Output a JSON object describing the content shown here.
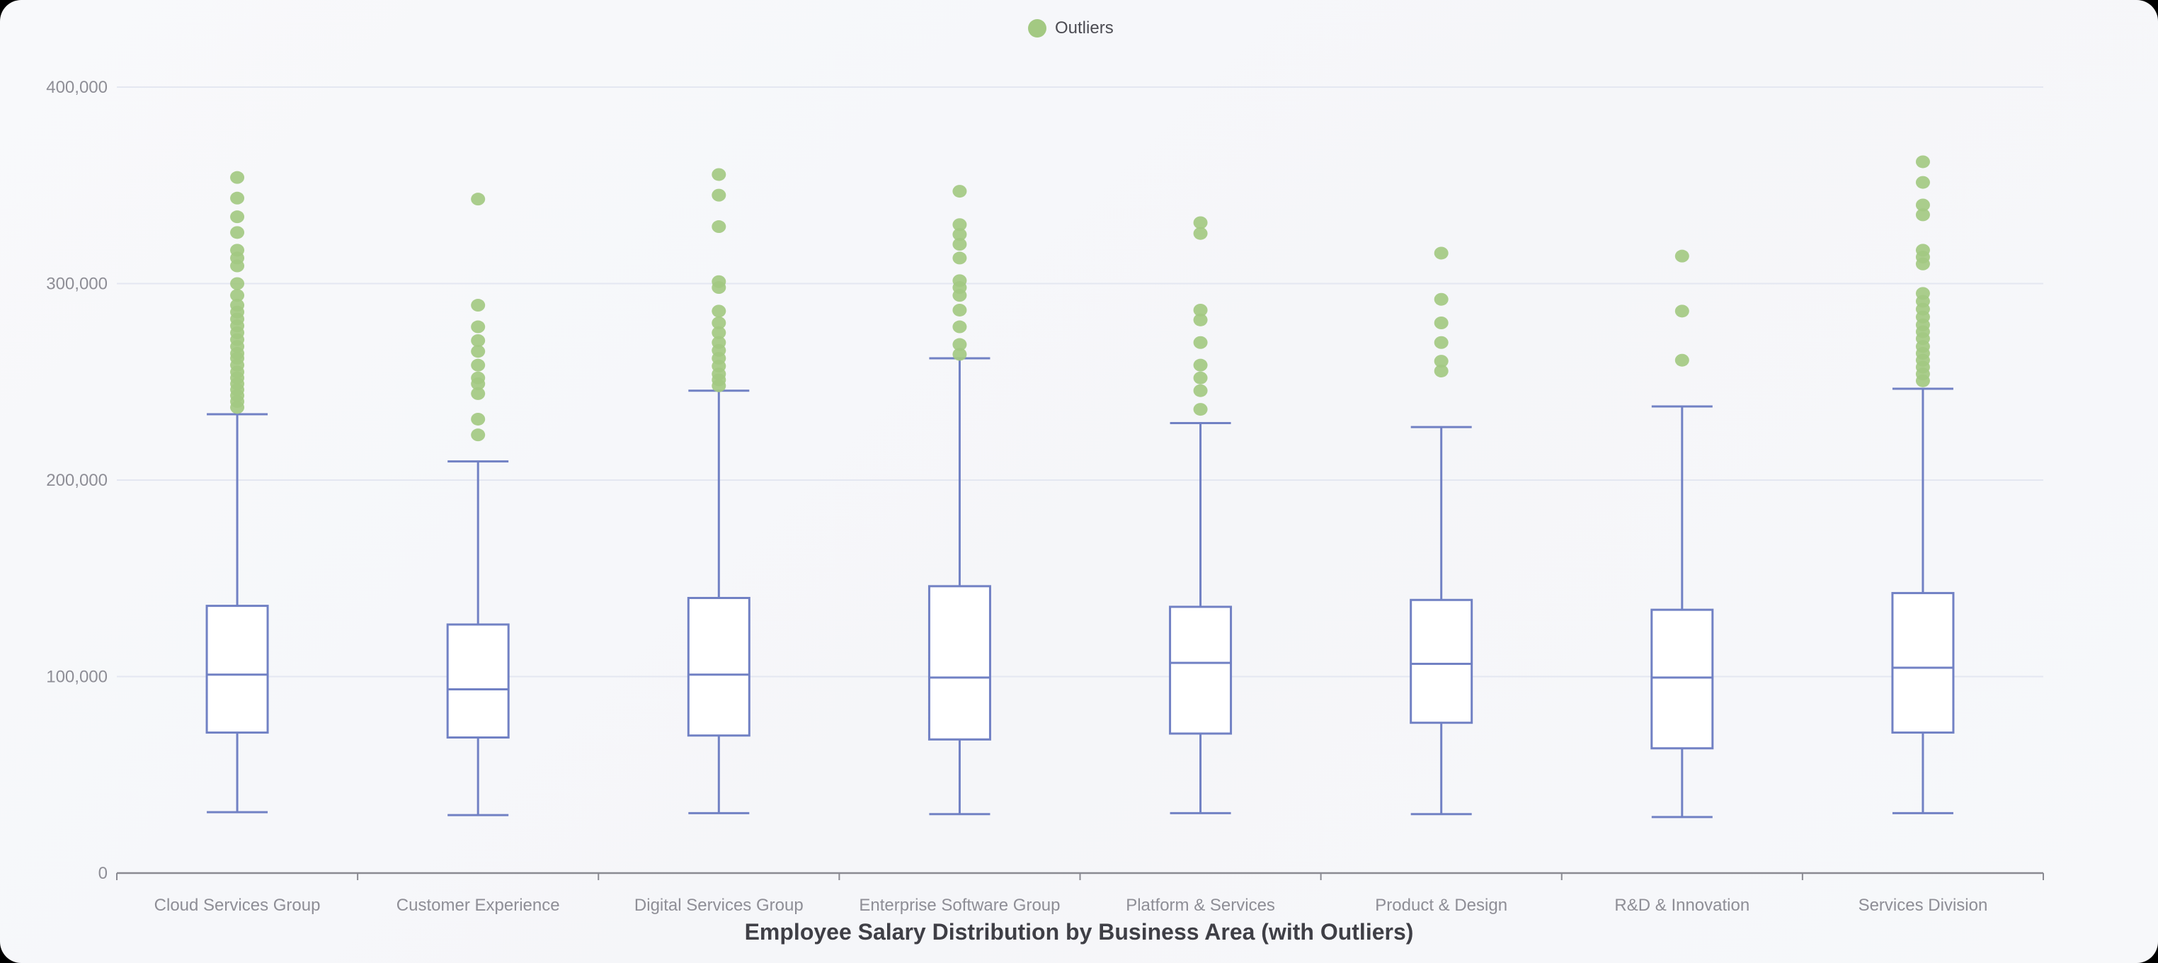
{
  "colors": {
    "page_bg": "#000000",
    "card_bg": "#f7f8fa",
    "outlier": "#a3c982",
    "box_stroke": "#7181c4",
    "box_fill": "#ffffff",
    "grid": "#e4e7f1",
    "axis": "#8a8a92",
    "tick_label": "#8e8e96",
    "legend_text": "#4b4b52",
    "title_text": "#3f3f46"
  },
  "chart_data": {
    "type": "boxplot",
    "title": "Employee Salary Distribution by Business Area (with Outliers)",
    "legend": [
      "Outliers"
    ],
    "legend_position": "top-center",
    "grid": "on",
    "xlabel": "",
    "ylabel": "",
    "ylim": [
      0,
      400000
    ],
    "yticks": [
      0,
      100000,
      200000,
      300000,
      400000
    ],
    "ytick_labels": [
      "0",
      "100,000",
      "200,000",
      "300,000",
      "400,000"
    ],
    "categories": [
      "Cloud Services Group",
      "Customer Experience",
      "Digital Services Group",
      "Enterprise Software Group",
      "Platform & Services",
      "Product & Design",
      "R&D & Innovation",
      "Services Division"
    ],
    "series": [
      {
        "name": "Cloud Services Group",
        "low": 31000,
        "q1": 71500,
        "median": 101000,
        "q3": 136000,
        "high": 233500,
        "outliers": [
          354000,
          343500,
          334000,
          326000,
          317000,
          313000,
          309000,
          300000,
          294000,
          289000,
          285500,
          282000,
          278500,
          275000,
          271500,
          268000,
          264500,
          262000,
          258500,
          255000,
          252000,
          249000,
          246000,
          243000,
          240000,
          237000
        ]
      },
      {
        "name": "Customer Experience",
        "low": 29500,
        "q1": 69000,
        "median": 93500,
        "q3": 126500,
        "high": 209500,
        "outliers": [
          343000,
          289000,
          278000,
          271000,
          265500,
          258500,
          252000,
          249000,
          244000,
          231000,
          223000
        ]
      },
      {
        "name": "Digital Services Group",
        "low": 30500,
        "q1": 70000,
        "median": 101000,
        "q3": 140000,
        "high": 245500,
        "outliers": [
          355500,
          345000,
          329000,
          301000,
          298000,
          286000,
          280000,
          275000,
          270000,
          266000,
          262000,
          258000,
          254000,
          251000,
          248000
        ]
      },
      {
        "name": "Enterprise Software Group",
        "low": 30000,
        "q1": 68000,
        "median": 99500,
        "q3": 146000,
        "high": 262000,
        "outliers": [
          347000,
          330000,
          325000,
          320000,
          313000,
          301500,
          298000,
          294000,
          286500,
          278000,
          269000,
          264000
        ]
      },
      {
        "name": "Platform & Services",
        "low": 30500,
        "q1": 71000,
        "median": 107000,
        "q3": 135500,
        "high": 229000,
        "outliers": [
          331000,
          325500,
          286500,
          281500,
          270000,
          258500,
          252000,
          245500,
          236000
        ]
      },
      {
        "name": "Product & Design",
        "low": 30000,
        "q1": 76500,
        "median": 106500,
        "q3": 139000,
        "high": 227000,
        "outliers": [
          315500,
          292000,
          280000,
          270000,
          260500,
          255500
        ]
      },
      {
        "name": "R&D & Innovation",
        "low": 28500,
        "q1": 63500,
        "median": 99500,
        "q3": 134000,
        "high": 237500,
        "outliers": [
          314000,
          286000,
          261000
        ]
      },
      {
        "name": "Services Division",
        "low": 30500,
        "q1": 71500,
        "median": 104500,
        "q3": 142500,
        "high": 246500,
        "outliers": [
          362000,
          351500,
          340000,
          335000,
          317000,
          313500,
          310000,
          295000,
          291000,
          287000,
          283000,
          279000,
          275500,
          272000,
          268000,
          264500,
          261000,
          257500,
          254000,
          250500
        ]
      }
    ]
  }
}
